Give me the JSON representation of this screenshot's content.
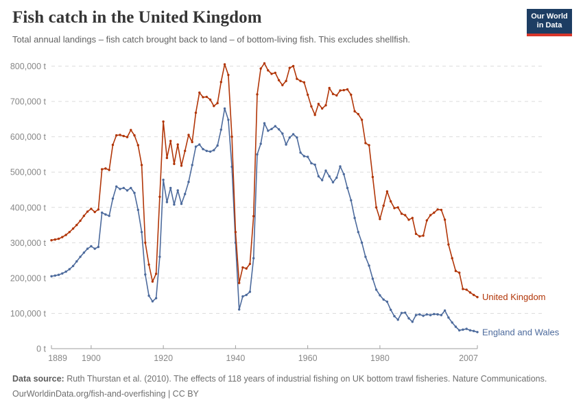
{
  "header": {
    "title": "Fish catch in the United Kingdom",
    "subtitle": "Total annual landings – fish catch brought back to land – of bottom-living fish. This excludes shellfish."
  },
  "logo": {
    "line1": "Our World",
    "line2": "in Data",
    "bg_color": "#1d3d63",
    "bar_color": "#d8352a"
  },
  "footer": {
    "source_label": "Data source:",
    "source_text": " Ruth Thurstan et al. (2010). The effects of 118 years of industrial fishing on UK bottom trawl fisheries. Nature Communications.",
    "license_line": "OurWorldinData.org/fish-and-overfishing | CC BY"
  },
  "chart_data": {
    "type": "line",
    "title": "Fish catch in the United Kingdom",
    "unit": "t",
    "values_scale": 1000,
    "x": {
      "start": 1889,
      "end": 2007,
      "step": 1
    },
    "ylim": [
      0,
      800000
    ],
    "grid": "dashed-horizontal",
    "legend_position": "line-end-labels",
    "yticks": [
      {
        "v": 0,
        "label": "0 t"
      },
      {
        "v": 100000,
        "label": "100,000 t"
      },
      {
        "v": 200000,
        "label": "200,000 t"
      },
      {
        "v": 300000,
        "label": "300,000 t"
      },
      {
        "v": 400000,
        "label": "400,000 t"
      },
      {
        "v": 500000,
        "label": "500,000 t"
      },
      {
        "v": 600000,
        "label": "600,000 t"
      },
      {
        "v": 700000,
        "label": "700,000 t"
      },
      {
        "v": 800000,
        "label": "800,000 t"
      }
    ],
    "xticks": [
      {
        "v": 1889,
        "label": "1889"
      },
      {
        "v": 1900,
        "label": "1900"
      },
      {
        "v": 1920,
        "label": "1920"
      },
      {
        "v": 1940,
        "label": "1940"
      },
      {
        "v": 1960,
        "label": "1960"
      },
      {
        "v": 1980,
        "label": "1980"
      },
      {
        "v": 2007,
        "label": "2007"
      }
    ],
    "series": [
      {
        "name": "United Kingdom",
        "color": "#b13507",
        "values": [
          307,
          309,
          311,
          316,
          322,
          330,
          340,
          350,
          362,
          376,
          388,
          396,
          387,
          394,
          508,
          510,
          506,
          577,
          604,
          605,
          602,
          599,
          619,
          604,
          576,
          520,
          300,
          238,
          190,
          212,
          430,
          643,
          540,
          588,
          523,
          578,
          518,
          560,
          605,
          585,
          668,
          725,
          712,
          713,
          705,
          687,
          695,
          755,
          805,
          775,
          600,
          330,
          186,
          230,
          227,
          240,
          375,
          720,
          793,
          808,
          788,
          778,
          781,
          760,
          746,
          758,
          795,
          800,
          764,
          758,
          754,
          719,
          686,
          662,
          693,
          680,
          689,
          738,
          721,
          717,
          731,
          732,
          734,
          719,
          672,
          664,
          648,
          582,
          576,
          486,
          400,
          367,
          405,
          445,
          417,
          398,
          400,
          382,
          378,
          365,
          370,
          325,
          318,
          320,
          363,
          378,
          385,
          394,
          393,
          365,
          295,
          256,
          220,
          215,
          169,
          167,
          159,
          152,
          146
        ]
      },
      {
        "name": "England and Wales",
        "color": "#4c6a9c",
        "values": [
          205,
          207,
          209,
          213,
          218,
          225,
          234,
          247,
          260,
          272,
          283,
          290,
          283,
          288,
          385,
          380,
          376,
          425,
          459,
          452,
          455,
          448,
          455,
          441,
          393,
          330,
          210,
          150,
          134,
          143,
          260,
          478,
          415,
          455,
          408,
          448,
          410,
          438,
          472,
          520,
          572,
          578,
          565,
          560,
          558,
          562,
          575,
          620,
          680,
          648,
          515,
          300,
          111,
          148,
          152,
          161,
          256,
          550,
          580,
          638,
          617,
          622,
          630,
          621,
          609,
          578,
          598,
          607,
          598,
          555,
          545,
          543,
          525,
          521,
          488,
          477,
          504,
          488,
          471,
          484,
          516,
          494,
          455,
          420,
          370,
          330,
          300,
          260,
          235,
          198,
          167,
          151,
          139,
          133,
          110,
          92,
          82,
          101,
          102,
          86,
          76,
          95,
          97,
          93,
          97,
          95,
          98,
          97,
          95,
          108,
          88,
          74,
          62,
          52,
          54,
          56,
          52,
          50,
          47
        ]
      }
    ]
  }
}
